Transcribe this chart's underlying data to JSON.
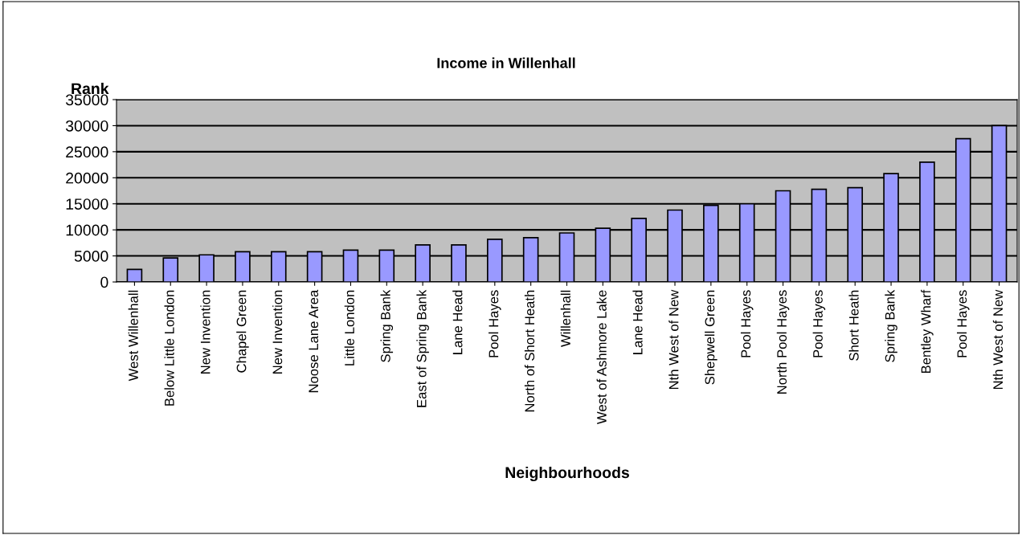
{
  "chart_data": {
    "type": "bar",
    "title": "Income in Willenhall",
    "xlabel": "Neighbourhoods",
    "ylabel": "Rank",
    "categories": [
      "West Willenhall",
      "Below Little London",
      "New Invention",
      "Chapel Green",
      "New Invention",
      "Noose Lane Area",
      "Little London",
      "Spring Bank",
      "East of Spring Bank",
      "Lane Head",
      "Pool Hayes",
      "North of Short Heath",
      "Willenhall",
      "West of Ashmore Lake",
      "Lane Head",
      "Nth West of New",
      "Shepwell Green",
      "Pool Hayes",
      "North Pool Hayes",
      "Pool Hayes",
      "Short Heath",
      "Spring Bank",
      "Bentley Wharf",
      "Pool Hayes",
      "Nth West of New"
    ],
    "values": [
      2400,
      4600,
      5200,
      5800,
      5800,
      5800,
      6100,
      6100,
      7100,
      7100,
      8200,
      8500,
      9400,
      10300,
      12200,
      13800,
      14700,
      15000,
      17500,
      17800,
      18100,
      20800,
      23000,
      27500,
      30000
    ],
    "color": "#9999ff",
    "ylim": [
      0,
      35000
    ],
    "yticks": [
      0,
      5000,
      10000,
      15000,
      20000,
      25000,
      30000,
      35000
    ],
    "grid": "y",
    "legend": false
  }
}
